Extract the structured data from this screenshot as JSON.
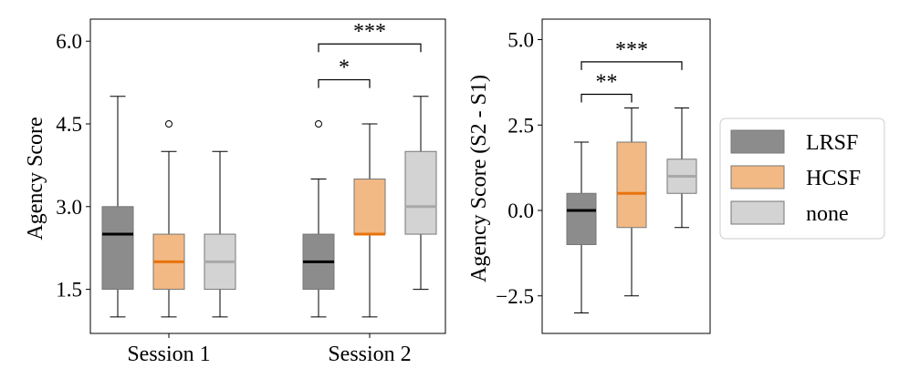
{
  "chart_data": [
    {
      "type": "box",
      "ylabel": "Agency Score",
      "ylim": [
        0.7,
        6.4
      ],
      "yticks": [
        "1.5",
        "3.0",
        "4.5",
        "6.0"
      ],
      "categories": [
        "Session 1",
        "Session 2"
      ],
      "series": [
        {
          "name": "LRSF",
          "boxes": [
            {
              "min": 1.0,
              "q1": 1.5,
              "median": 2.5,
              "q3": 3.0,
              "max": 5.0,
              "outliers": []
            },
            {
              "min": 1.0,
              "q1": 1.5,
              "median": 2.0,
              "q3": 2.5,
              "max": 3.5,
              "outliers": [
                4.5
              ]
            }
          ]
        },
        {
          "name": "HCSF",
          "boxes": [
            {
              "min": 1.0,
              "q1": 1.5,
              "median": 2.0,
              "q3": 2.5,
              "max": 4.0,
              "outliers": [
                4.5
              ]
            },
            {
              "min": 1.0,
              "q1": 2.5,
              "median": 2.5,
              "q3": 3.5,
              "max": 4.5,
              "outliers": []
            }
          ]
        },
        {
          "name": "none",
          "boxes": [
            {
              "min": 1.0,
              "q1": 1.5,
              "median": 2.0,
              "q3": 2.5,
              "max": 4.0,
              "outliers": []
            },
            {
              "min": 1.5,
              "q1": 2.5,
              "median": 3.0,
              "q3": 4.0,
              "max": 5.0,
              "outliers": []
            }
          ]
        }
      ],
      "significance": [
        {
          "category": "Session 2",
          "from": "LRSF",
          "to": "HCSF",
          "label": "*",
          "y": 5.3
        },
        {
          "category": "Session 2",
          "from": "LRSF",
          "to": "none",
          "label": "***",
          "y": 5.95
        }
      ]
    },
    {
      "type": "box",
      "ylabel": "Agency Score (S2 - S1)",
      "ylim": [
        -3.6,
        5.6
      ],
      "yticks": [
        "−2.5",
        "0.0",
        "2.5",
        "5.0"
      ],
      "categories": [
        "LRSF",
        "HCSF",
        "none"
      ],
      "boxes": [
        {
          "name": "LRSF",
          "min": -3.0,
          "q1": -1.0,
          "median": 0.0,
          "q3": 0.5,
          "max": 2.0,
          "outliers": []
        },
        {
          "name": "HCSF",
          "min": -2.5,
          "q1": -0.5,
          "median": 0.5,
          "q3": 2.0,
          "max": 3.0,
          "outliers": []
        },
        {
          "name": "none",
          "min": -0.5,
          "q1": 0.5,
          "median": 1.0,
          "q3": 1.5,
          "max": 3.0,
          "outliers": []
        }
      ],
      "significance": [
        {
          "from": "LRSF",
          "to": "HCSF",
          "label": "**",
          "y": 3.4
        },
        {
          "from": "LRSF",
          "to": "none",
          "label": "***",
          "y": 4.35
        }
      ]
    }
  ],
  "legend": {
    "position": "right",
    "items": [
      {
        "label": "LRSF",
        "fill": "#8c8c8c",
        "median": "#000000"
      },
      {
        "label": "HCSF",
        "fill": "#f2b984",
        "median": "#e8730c"
      },
      {
        "label": "none",
        "fill": "#d3d3d3",
        "median": "#a8a8a8"
      }
    ]
  }
}
